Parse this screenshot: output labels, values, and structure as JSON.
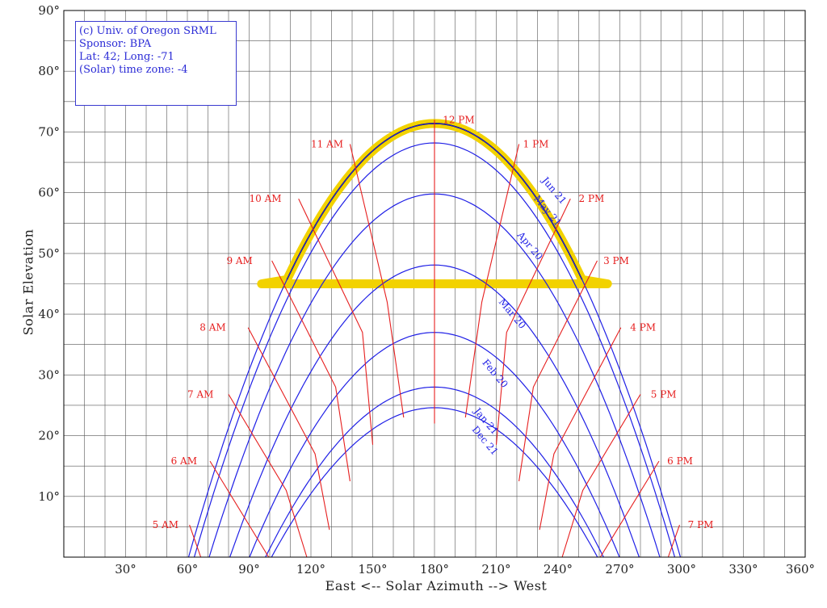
{
  "chart_data": {
    "type": "line",
    "info_box": [
      "(c) Univ. of Oregon SRML",
      "Sponsor: BPA",
      "Lat: 42; Long: -71",
      "(Solar) time zone: -4"
    ],
    "xlabel": "East <-- Solar Azimuth --> West",
    "ylabel": "Solar Elevation",
    "xlim": [
      0,
      360
    ],
    "ylim": [
      0,
      90
    ],
    "x_ticks": [
      "30°",
      "60°",
      "90°",
      "120°",
      "150°",
      "180°",
      "210°",
      "240°",
      "270°",
      "300°",
      "330°",
      "360°"
    ],
    "y_ticks": [
      "10°",
      "20°",
      "30°",
      "40°",
      "50°",
      "60°",
      "70°",
      "80°",
      "90°"
    ],
    "grid": true,
    "series_color": "#1f1fe6",
    "hour_color": "#e61f1f",
    "highlight_color": "#f2d200",
    "series": [
      {
        "name": "Jun 21",
        "peak": 71.4,
        "label_at": [
          232,
          62
        ]
      },
      {
        "name": "May 21",
        "peak": 68.2,
        "label_at": [
          228,
          59
        ]
      },
      {
        "name": "Apr 20",
        "peak": 59.8,
        "label_at": [
          220,
          53
        ]
      },
      {
        "name": "Mar 20",
        "peak": 48.1,
        "label_at": [
          211,
          42
        ]
      },
      {
        "name": "Feb 20",
        "peak": 37.0,
        "label_at": [
          203,
          32
        ]
      },
      {
        "name": "Jan 21",
        "peak": 28.0,
        "label_at": [
          199,
          24
        ]
      },
      {
        "name": "Dec 21",
        "peak": 24.6,
        "label_at": [
          198,
          21
        ]
      }
    ],
    "hour_lines": [
      {
        "label": "5 AM",
        "points": [
          [
            61,
            5.3
          ],
          [
            66.5,
            0
          ]
        ],
        "label_at": [
          43,
          5.3
        ]
      },
      {
        "label": "6 AM",
        "points": [
          [
            71,
            15.8
          ],
          [
            99.5,
            0
          ]
        ],
        "label_at": [
          52,
          15.8
        ]
      },
      {
        "label": "7 AM",
        "points": [
          [
            80,
            26.8
          ],
          [
            108,
            11
          ],
          [
            118,
            0
          ]
        ],
        "label_at": [
          60,
          26.8
        ]
      },
      {
        "label": "8 AM",
        "points": [
          [
            89.5,
            37.8
          ],
          [
            122,
            17
          ],
          [
            129,
            4.5
          ]
        ],
        "label_at": [
          66,
          37.8
        ]
      },
      {
        "label": "9 AM",
        "points": [
          [
            101,
            48.8
          ],
          [
            132,
            28
          ],
          [
            139,
            12.5
          ]
        ],
        "label_at": [
          79,
          48.8
        ]
      },
      {
        "label": "10 AM",
        "points": [
          [
            114,
            59
          ],
          [
            145,
            37
          ],
          [
            150,
            18.5
          ]
        ],
        "label_at": [
          90,
          59
        ]
      },
      {
        "label": "11 AM",
        "points": [
          [
            139,
            68
          ],
          [
            157,
            42
          ],
          [
            165,
            23
          ]
        ],
        "label_at": [
          120,
          68
        ]
      },
      {
        "label": "12 PM",
        "points": [
          [
            180,
            72
          ],
          [
            180,
            22
          ]
        ],
        "label_at": [
          184,
          72
        ]
      },
      {
        "label": "1 PM",
        "points": [
          [
            221,
            68
          ],
          [
            203,
            42
          ],
          [
            195,
            23
          ]
        ],
        "label_at": [
          223,
          68
        ]
      },
      {
        "label": "2 PM",
        "points": [
          [
            246,
            59
          ],
          [
            215,
            37
          ],
          [
            210,
            18.5
          ]
        ],
        "label_at": [
          250,
          59
        ]
      },
      {
        "label": "3 PM",
        "points": [
          [
            259,
            48.8
          ],
          [
            228,
            28
          ],
          [
            221,
            12.5
          ]
        ],
        "label_at": [
          262,
          48.8
        ]
      },
      {
        "label": "4 PM",
        "points": [
          [
            270.5,
            37.8
          ],
          [
            238,
            17
          ],
          [
            231,
            4.5
          ]
        ],
        "label_at": [
          275,
          37.8
        ]
      },
      {
        "label": "5 PM",
        "points": [
          [
            280,
            26.8
          ],
          [
            252,
            11
          ],
          [
            242,
            0
          ]
        ],
        "label_at": [
          285,
          26.8
        ]
      },
      {
        "label": "6 PM",
        "points": [
          [
            289,
            15.8
          ],
          [
            260.5,
            0
          ]
        ],
        "label_at": [
          293,
          15.8
        ]
      },
      {
        "label": "7 PM",
        "points": [
          [
            299,
            5.3
          ],
          [
            293.5,
            0
          ]
        ],
        "label_at": [
          303,
          5.3
        ]
      }
    ],
    "highlight_region": {
      "min_elevation": 45,
      "azimuth_range": [
        96,
        264
      ]
    }
  }
}
